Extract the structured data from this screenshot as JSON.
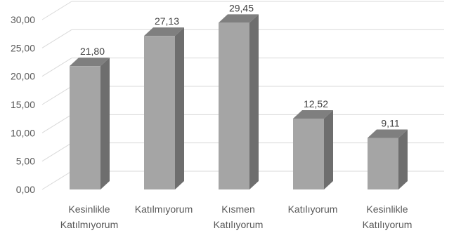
{
  "chart_data": {
    "type": "bar",
    "style": "3d-column",
    "categories": [
      [
        "Kesinlikle",
        "Katılmıyorum"
      ],
      [
        "Katılmıyorum"
      ],
      [
        "Kısmen",
        "Katılıyorum"
      ],
      [
        "Katılıyorum"
      ],
      [
        "Kesinlikle",
        "Katılıyorum"
      ]
    ],
    "values": [
      21.8,
      27.13,
      29.45,
      12.52,
      9.11
    ],
    "data_labels": [
      "21,80",
      "27,13",
      "29,45",
      "12,52",
      "9,11"
    ],
    "y_ticks": [
      "0,00",
      "5,00",
      "10,00",
      "15,00",
      "20,00",
      "25,00",
      "30,00"
    ],
    "ylim": [
      0,
      30
    ],
    "title": "",
    "xlabel": "",
    "ylabel": "",
    "grid": true,
    "legend": "none",
    "colors": {
      "bar_front": "#a5a5a5",
      "bar_side": "#6e6e6e",
      "bar_top": "#7f7f7f",
      "gridline": "#d9d9d9",
      "label": "#595959"
    }
  }
}
